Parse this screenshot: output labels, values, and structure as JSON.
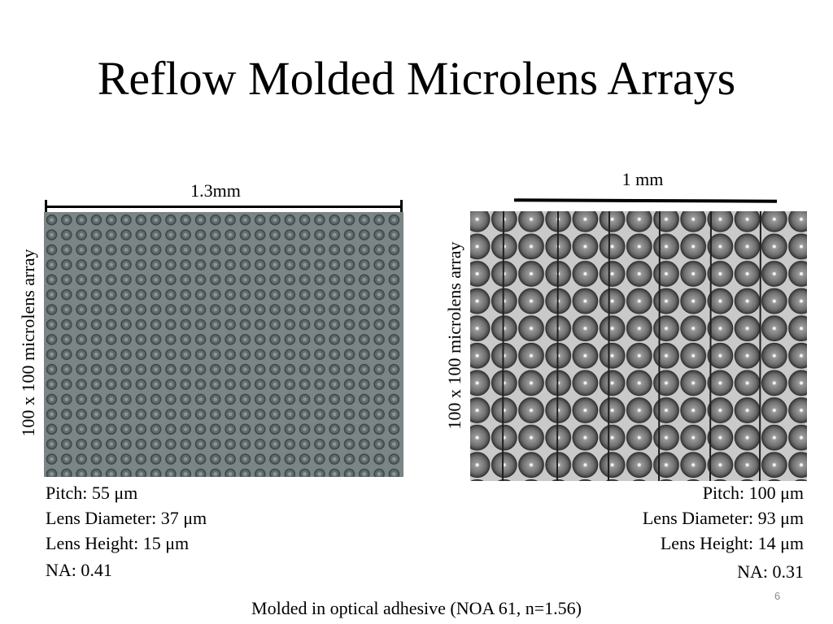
{
  "slide": {
    "title": "Reflow Molded Microlens Arrays",
    "footer": "Molded in optical adhesive (NOA 61, n=1.56)",
    "page_number": "6"
  },
  "left_panel": {
    "scale_label": "1.3mm",
    "vertical_label": "100 x 100 microlens array",
    "specs": [
      "Pitch: 55 μm",
      "Lens Diameter: 37 μm",
      "Lens Height: 15 μm"
    ],
    "na": "NA: 0.41"
  },
  "right_panel": {
    "scale_label": "1 mm",
    "vertical_label": "100 x 100 microlens array",
    "specs": [
      "Pitch: 100 μm",
      "Lens Diameter: 93 μm",
      "Lens Height: 14 μm"
    ],
    "na": "NA: 0.31"
  }
}
